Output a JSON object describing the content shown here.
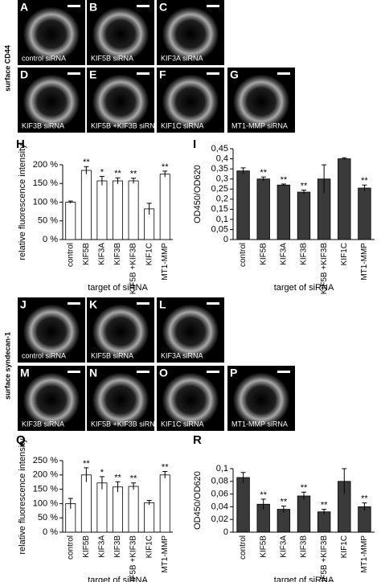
{
  "row_labels": [
    "surface CD44",
    "surface syndecan-1"
  ],
  "image_panels": [
    {
      "letter": "A",
      "caption": "control siRNA"
    },
    {
      "letter": "B",
      "caption": "KIF5B siRNA"
    },
    {
      "letter": "C",
      "caption": "KIF3A siRNA"
    },
    {
      "letter": "D",
      "caption": "KIF3B siRNA"
    },
    {
      "letter": "E",
      "caption": "KIF5B +KIF3B siRNA"
    },
    {
      "letter": "F",
      "caption": "KIF1C siRNA"
    },
    {
      "letter": "G",
      "caption": "MT1-MMP siRNA"
    },
    {
      "letter": "J",
      "caption": "control siRNA"
    },
    {
      "letter": "K",
      "caption": "KIF5B siRNA"
    },
    {
      "letter": "L",
      "caption": "KIF3A siRNA"
    },
    {
      "letter": "M",
      "caption": "KIF3B siRNA"
    },
    {
      "letter": "N",
      "caption": "KIF5B +KIF3B siRNA"
    },
    {
      "letter": "O",
      "caption": "KIF1C siRNA"
    },
    {
      "letter": "P",
      "caption": "MT1-MMP siRNA"
    }
  ],
  "chart_data": [
    {
      "type": "bar",
      "panel_label": "H",
      "y_label": "relative fluorescence intensity",
      "x_label": "target of siRNA",
      "categories": [
        "control",
        "KIF5B",
        "KIF3A",
        "KIF3B",
        "KIF5B +KIF3B",
        "KIF1C",
        "MT1-MMP"
      ],
      "values": [
        100,
        185,
        157,
        157,
        157,
        82,
        175
      ],
      "errors": [
        3,
        10,
        12,
        8,
        7,
        15,
        8
      ],
      "annotations": [
        null,
        "**",
        "*",
        "**",
        "**",
        null,
        "**"
      ],
      "color": "#ffffff",
      "ylim": [
        0,
        200
      ],
      "yticks": [
        {
          "value": 0,
          "label": "0 %"
        },
        {
          "value": 50,
          "label": "50 %"
        },
        {
          "value": 100,
          "label": "100 %"
        },
        {
          "value": 150,
          "label": "150 %"
        },
        {
          "value": 200,
          "label": "200 %"
        }
      ]
    },
    {
      "type": "bar",
      "panel_label": "I",
      "y_label": "OD450/OD620",
      "x_label": "target of siRNA",
      "categories": [
        "control",
        "KIF5B",
        "KIF3A",
        "KIF3B",
        "KIF5B +KIF3B",
        "KIF1C",
        "MT1-MMP"
      ],
      "values": [
        0.34,
        0.3,
        0.27,
        0.235,
        0.3,
        0.4,
        0.255
      ],
      "errors": [
        0.015,
        0.01,
        0.005,
        0.01,
        0.07,
        0.005,
        0.015
      ],
      "annotations": [
        null,
        "**",
        "**",
        "**",
        null,
        null,
        "**"
      ],
      "color": "#3a3a3a",
      "ylim": [
        0,
        0.45
      ],
      "yticks": [
        0,
        {
          "value": 0.05,
          "label": "0,05"
        },
        {
          "value": 0.1,
          "label": "0,1"
        },
        {
          "value": 0.15,
          "label": "0,15"
        },
        {
          "value": 0.2,
          "label": "0,2"
        },
        {
          "value": 0.25,
          "label": "0,25"
        },
        {
          "value": 0.3,
          "label": "0,3"
        },
        {
          "value": 0.35,
          "label": "0,35"
        },
        {
          "value": 0.4,
          "label": "0,4"
        },
        {
          "value": 0.45,
          "label": "0,45"
        }
      ]
    },
    {
      "type": "bar",
      "panel_label": "Q",
      "y_label": "relative fluorescence intensity",
      "x_label": "target of siRNA",
      "categories": [
        "control",
        "KIF5B",
        "KIF3A",
        "KIF3B",
        "KIF5B +KIF3B",
        "KIF1C",
        "MT1-MMP"
      ],
      "values": [
        100,
        200,
        172,
        158,
        160,
        103,
        200
      ],
      "errors": [
        18,
        25,
        22,
        18,
        12,
        8,
        12
      ],
      "annotations": [
        null,
        "**",
        "*",
        "**",
        "**",
        null,
        "**"
      ],
      "color": "#ffffff",
      "ylim": [
        0,
        250
      ],
      "yticks": [
        {
          "value": 0,
          "label": "0 %"
        },
        {
          "value": 50,
          "label": "50 %"
        },
        {
          "value": 100,
          "label": "100 %"
        },
        {
          "value": 150,
          "label": "150 %"
        },
        {
          "value": 200,
          "label": "200 %"
        },
        {
          "value": 250,
          "label": "250 %"
        }
      ]
    },
    {
      "type": "bar",
      "panel_label": "R",
      "y_label": "OD450/OD620",
      "x_label": "target of siRNA",
      "categories": [
        "control",
        "KIF5B",
        "KIF3A",
        "KIF3B",
        "KIF5B +KIF3B",
        "KIF1C",
        "MT1-MMP"
      ],
      "values": [
        0.086,
        0.044,
        0.036,
        0.057,
        0.032,
        0.08,
        0.04
      ],
      "errors": [
        0.008,
        0.008,
        0.005,
        0.006,
        0.004,
        0.02,
        0.006
      ],
      "annotations": [
        null,
        "**",
        "**",
        "**",
        "**",
        null,
        "**"
      ],
      "color": "#3a3a3a",
      "ylim": [
        0,
        0.1
      ],
      "yticks": [
        0,
        {
          "value": 0.02,
          "label": "0,02"
        },
        {
          "value": 0.04,
          "label": "0,04"
        },
        {
          "value": 0.06,
          "label": "0,06"
        },
        {
          "value": 0.08,
          "label": "0,08"
        },
        {
          "value": 0.1,
          "label": "0,1"
        }
      ]
    }
  ]
}
